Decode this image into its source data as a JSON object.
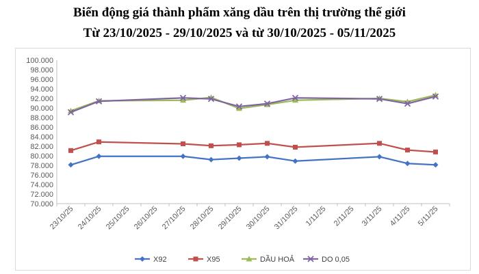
{
  "title": "Biến động giá thành phẩm xăng dầu trên thị trường thế giới",
  "subtitle": "Từ 23/10/2025 - 29/10/2025 và từ 30/10/2025 - 05/11/2025",
  "chart_data": {
    "type": "line",
    "title": "Biến động giá thành phẩm xăng dầu trên thị trường thế giới",
    "subtitle": "Từ 23/10/2025 - 29/10/2025 và từ 30/10/2025 - 05/11/2025",
    "x": [
      "23/10/25",
      "24/10/25",
      "25/10/25",
      "26/10/25",
      "27/10/25",
      "28/10/25",
      "29/10/25",
      "30/10/25",
      "31/10/25",
      "1/11/25",
      "2/11/25",
      "3/11/25",
      "4/11/25",
      "5/11/25"
    ],
    "ylim": [
      70,
      100
    ],
    "yticks": [
      "70.000",
      "72.000",
      "74.000",
      "76.000",
      "78.000",
      "80.000",
      "82.000",
      "84.000",
      "86.000",
      "88.000",
      "90.000",
      "92.000",
      "94.000",
      "96.000",
      "98.000",
      "100.000"
    ],
    "grid": false,
    "legend": "bottom",
    "series": [
      {
        "name": "X92",
        "color": "#4472C4",
        "marker": "diamond",
        "values": [
          78.1,
          79.9,
          null,
          null,
          79.9,
          79.2,
          79.5,
          79.8,
          78.9,
          null,
          null,
          79.8,
          78.4,
          78.1
        ]
      },
      {
        "name": "X95",
        "color": "#C0504D",
        "marker": "square",
        "values": [
          81.1,
          82.9,
          null,
          null,
          82.5,
          82.1,
          82.3,
          82.6,
          81.8,
          null,
          null,
          82.6,
          81.2,
          80.8
        ]
      },
      {
        "name": "DẦU HOẢ",
        "color": "#9BBB59",
        "marker": "triangle",
        "values": [
          89.4,
          91.5,
          null,
          null,
          91.6,
          92.2,
          89.9,
          90.7,
          91.6,
          null,
          null,
          92.0,
          91.3,
          92.7
        ]
      },
      {
        "name": "DO 0,05",
        "color": "#8064A2",
        "marker": "x",
        "values": [
          89.1,
          91.4,
          null,
          null,
          92.1,
          91.9,
          90.3,
          90.9,
          92.1,
          null,
          null,
          91.9,
          90.9,
          92.4
        ]
      }
    ]
  }
}
